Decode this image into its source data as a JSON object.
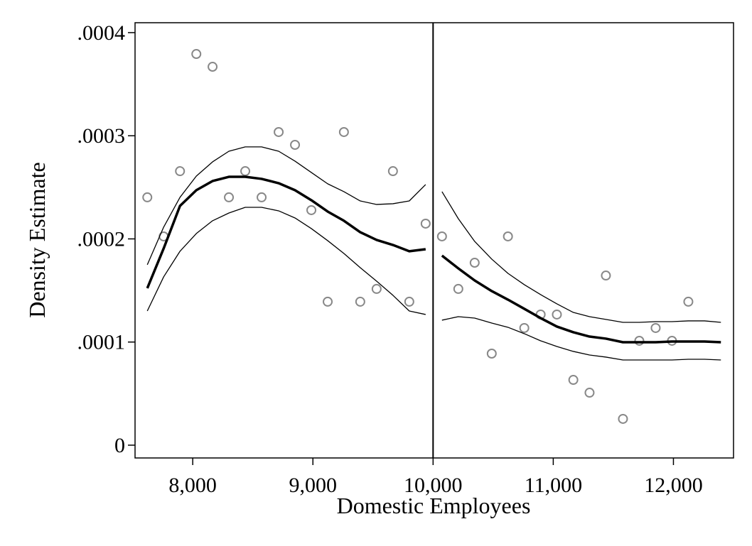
{
  "chart_data": {
    "type": "scatter",
    "x_label": "Domestic Employees",
    "y_label": "Density Estimate",
    "xlim": [
      7520,
      12500
    ],
    "ylim": [
      -1.24e-05,
      0.0004096
    ],
    "xticks": [
      {
        "value": 8000,
        "label": "8,000"
      },
      {
        "value": 9000,
        "label": "9,000"
      },
      {
        "value": 10000,
        "label": "10,000"
      },
      {
        "value": 11000,
        "label": "11,000"
      },
      {
        "value": 12000,
        "label": "12,000"
      }
    ],
    "yticks": [
      0,
      {
        "value": 0.0001,
        "label": ".0001"
      },
      {
        "value": 0.0002,
        "label": ".0002"
      },
      {
        "value": 0.0003,
        "label": ".0003"
      },
      {
        "value": 0.0004,
        "label": ".0004"
      }
    ],
    "cutoff": 10000,
    "series": [
      {
        "marker": "circle",
        "color": "#888888",
        "x": [
          7622,
          7758,
          7894,
          8030,
          8165,
          8301,
          8437,
          8573,
          8715,
          8851,
          8987,
          9123,
          9258,
          9394,
          9530,
          9666,
          9802,
          9938,
          10074,
          10210,
          10346,
          10488,
          10623,
          10759,
          10895,
          11030,
          11167,
          11302,
          11438,
          11580,
          11716,
          11852,
          11988,
          12124
        ],
        "values": [
          0.0002403,
          0.0002024,
          0.0002657,
          0.0003793,
          0.0003669,
          0.0002403,
          0.0002657,
          0.0002403,
          0.0003036,
          0.0002912,
          0.0002279,
          0.0001391,
          0.0003036,
          0.0001391,
          0.0001515,
          0.0002657,
          0.0001391,
          0.0002148,
          0.0002024,
          0.0001515,
          0.0001769,
          8.88e-05,
          0.0002024,
          0.0001136,
          0.0001267,
          0.0001267,
          6.33e-05,
          5.09e-05,
          0.0001645,
          2.55e-05,
          0.0001012,
          0.0001136,
          0.0001012,
          0.0001391
        ]
      },
      {
        "marker": "line",
        "color": "#000000",
        "line_width": 3.5,
        "x": [
          7622,
          7758,
          7894,
          8030,
          8165,
          8301,
          8437,
          8573,
          8715,
          8851,
          8987,
          9123,
          9258,
          9394,
          9530,
          9666,
          9802,
          9938
        ],
        "values": [
          0.0001522,
          0.0001907,
          0.000232,
          0.0002472,
          0.0002561,
          0.0002602,
          0.0002602,
          0.0002582,
          0.000254,
          0.0002472,
          0.0002375,
          0.0002265,
          0.0002176,
          0.0002065,
          0.000199,
          0.0001941,
          0.000188,
          0.00019
        ]
      },
      {
        "marker": "line",
        "color": "#000000",
        "line_width": 1.3,
        "x": [
          7622,
          7758,
          7894,
          8030,
          8165,
          8301,
          8437,
          8573,
          8715,
          8851,
          8987,
          9123,
          9258,
          9394,
          9530,
          9666,
          9802,
          9938
        ],
        "values": [
          0.0001749,
          0.0002114,
          0.0002403,
          0.0002609,
          0.0002747,
          0.000285,
          0.0002892,
          0.0002892,
          0.000285,
          0.0002754,
          0.0002644,
          0.0002534,
          0.0002458,
          0.0002368,
          0.0002334,
          0.0002341,
          0.0002368,
          0.0002527
        ]
      },
      {
        "marker": "line",
        "color": "#000000",
        "line_width": 1.3,
        "x": [
          7622,
          7758,
          7894,
          8030,
          8165,
          8301,
          8437,
          8573,
          8715,
          8851,
          8987,
          9123,
          9258,
          9394,
          9530,
          9666,
          9802,
          9938
        ],
        "values": [
          0.0001301,
          0.0001632,
          0.000188,
          0.0002052,
          0.0002176,
          0.0002251,
          0.0002306,
          0.0002306,
          0.0002272,
          0.0002203,
          0.00021,
          0.0001983,
          0.0001859,
          0.0001721,
          0.000159,
          0.0001453,
          0.0001301,
          0.0001267
        ]
      },
      {
        "marker": "line",
        "color": "#000000",
        "line_width": 3.5,
        "x": [
          10074,
          10210,
          10346,
          10488,
          10623,
          10759,
          10895,
          11030,
          11167,
          11302,
          11438,
          11580,
          11716,
          11852,
          11988,
          12124,
          12259,
          12395
        ],
        "values": [
          0.0001838,
          0.0001714,
          0.0001597,
          0.0001494,
          0.0001411,
          0.0001322,
          0.0001232,
          0.000115,
          0.0001095,
          0.0001053,
          0.0001033,
          9.98e-05,
          9.98e-05,
          9.98e-05,
          0.0001005,
          0.0001005,
          0.0001005,
          9.98e-05
        ]
      },
      {
        "marker": "line",
        "color": "#000000",
        "line_width": 1.3,
        "x": [
          10074,
          10210,
          10346,
          10488,
          10623,
          10759,
          10895,
          11030,
          11167,
          11302,
          11438,
          11580,
          11716,
          11852,
          11988,
          12124,
          12259,
          12395
        ],
        "values": [
          0.0002458,
          0.0002196,
          0.0001976,
          0.0001804,
          0.0001666,
          0.0001556,
          0.000146,
          0.000137,
          0.0001287,
          0.0001246,
          0.0001219,
          0.0001191,
          0.0001191,
          0.0001198,
          0.0001198,
          0.0001205,
          0.0001205,
          0.0001191
        ]
      },
      {
        "marker": "line",
        "color": "#000000",
        "line_width": 1.3,
        "x": [
          10074,
          10210,
          10346,
          10488,
          10623,
          10759,
          10895,
          11030,
          11167,
          11302,
          11438,
          11580,
          11716,
          11852,
          11988,
          12124,
          12259,
          12395
        ],
        "values": [
          0.0001212,
          0.0001246,
          0.0001232,
          0.0001184,
          0.0001143,
          0.0001081,
          0.0001012,
          9.57e-05,
          9.09e-05,
          8.74e-05,
          8.54e-05,
          8.26e-05,
          8.26e-05,
          8.26e-05,
          8.26e-05,
          8.33e-05,
          8.33e-05,
          8.26e-05
        ]
      }
    ]
  }
}
